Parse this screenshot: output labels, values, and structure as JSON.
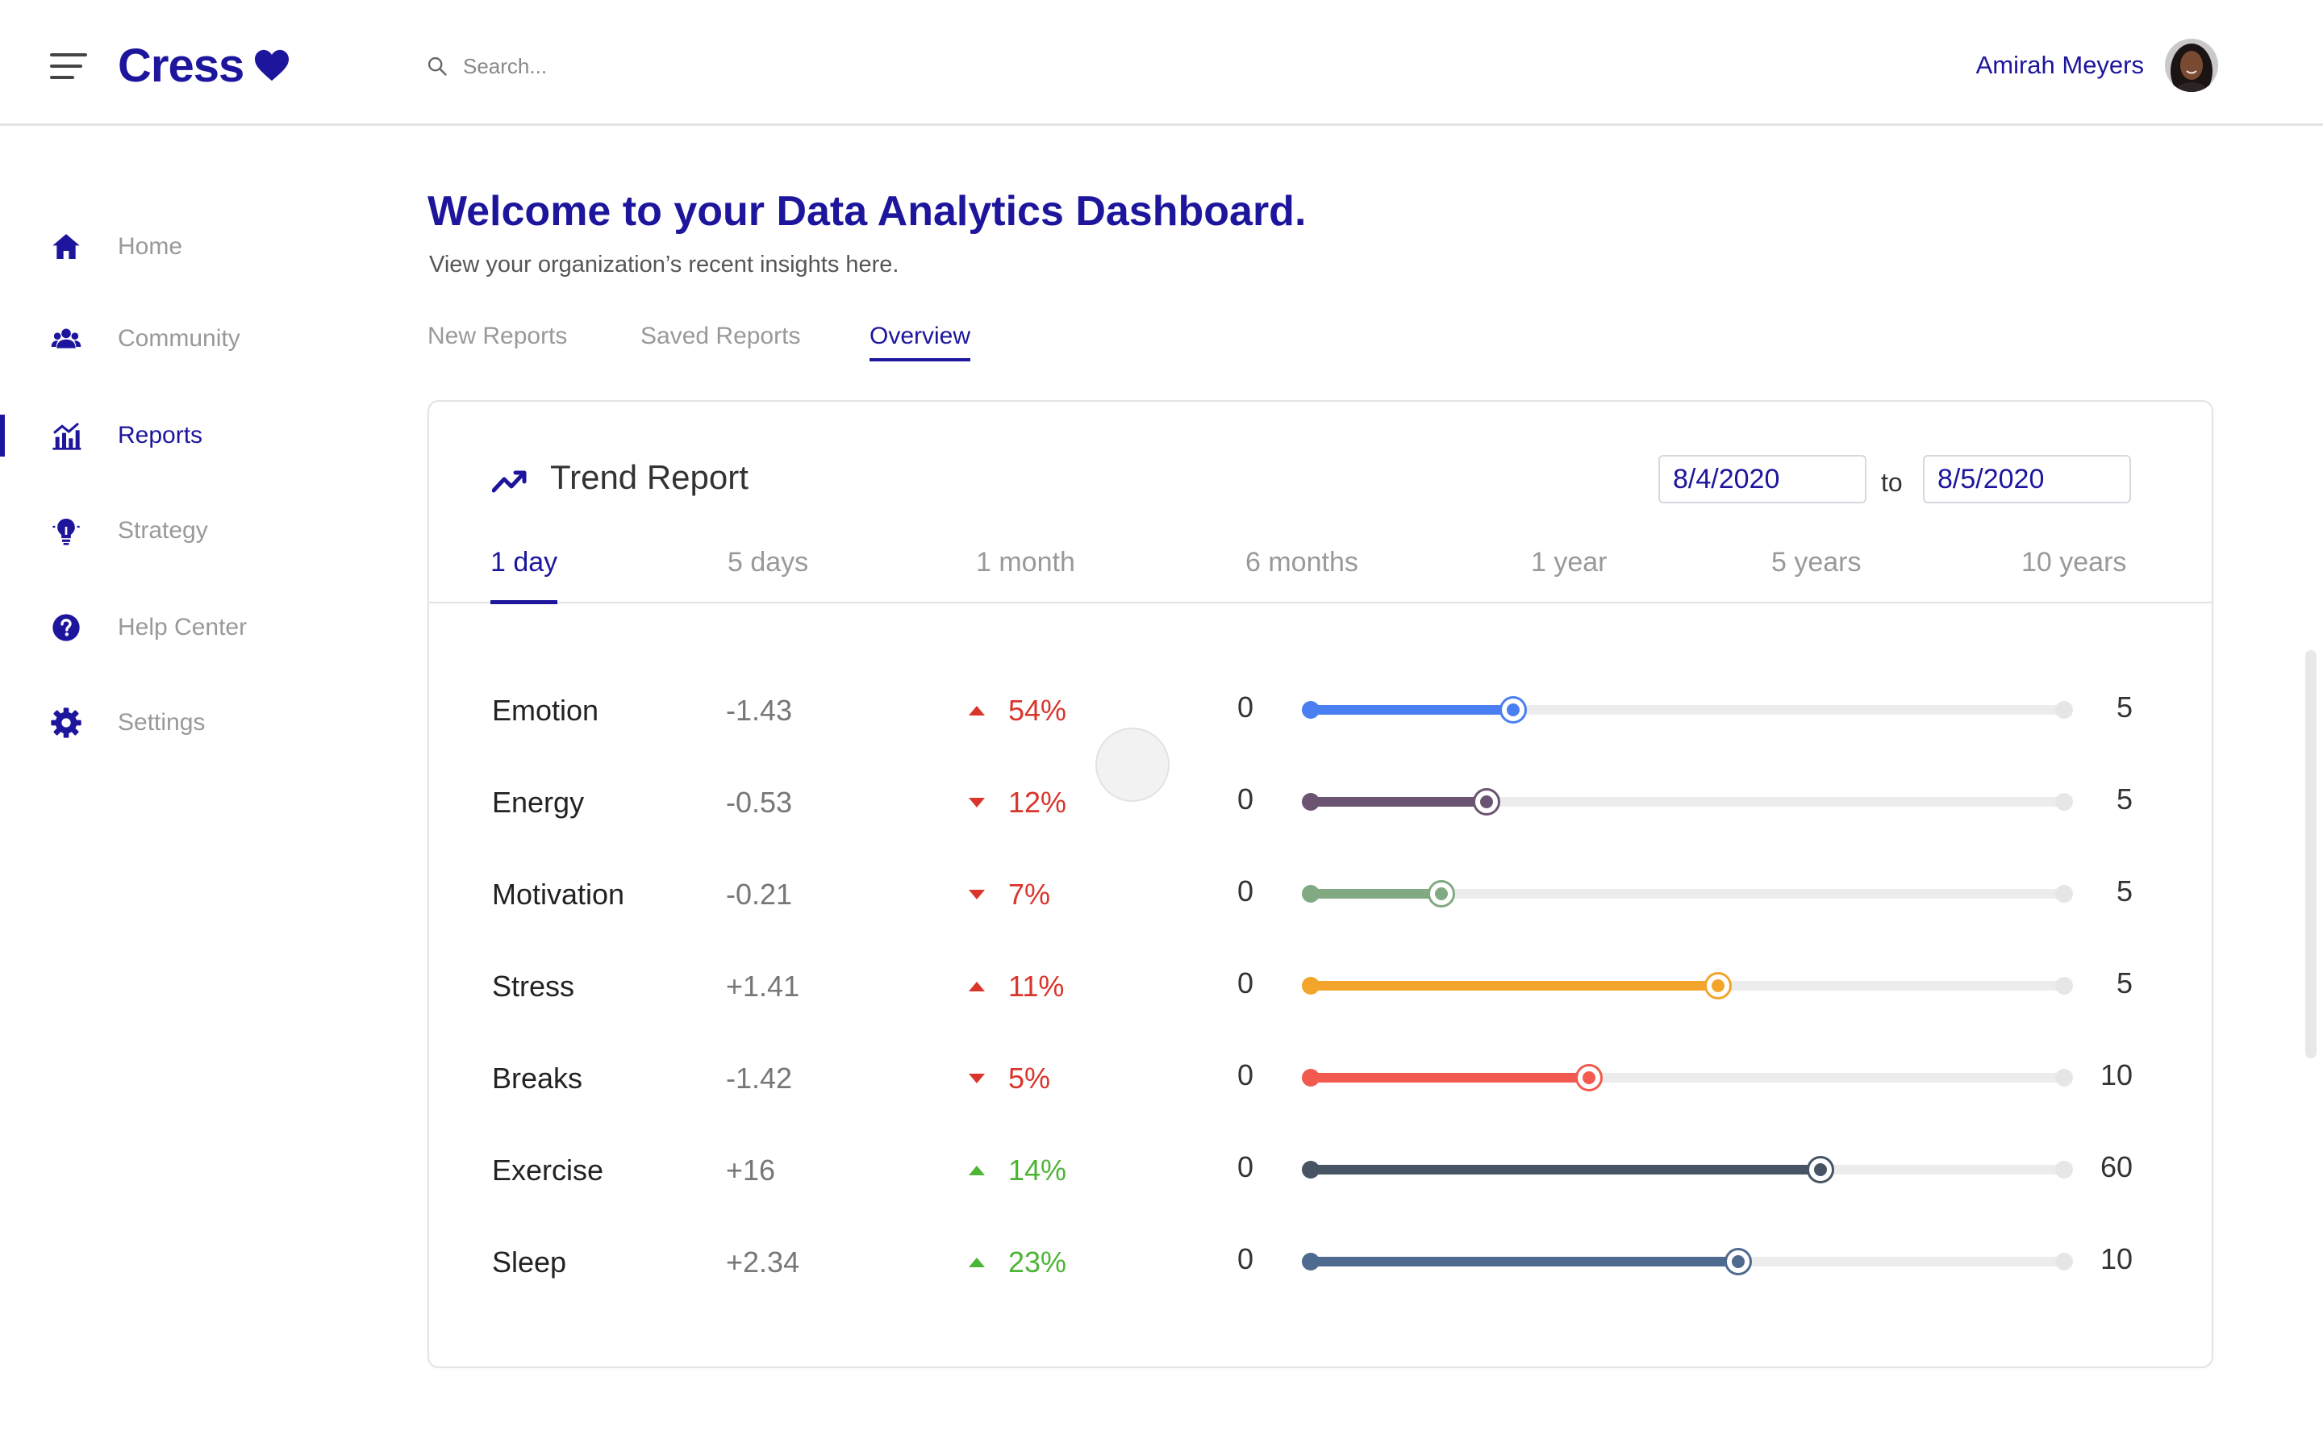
{
  "header": {
    "app_name": "Cress",
    "search_placeholder": "Search...",
    "user_name": "Amirah Meyers"
  },
  "sidebar": {
    "items": [
      {
        "label": "Home",
        "icon": "home-icon",
        "active": false
      },
      {
        "label": "Community",
        "icon": "community-icon",
        "active": false
      },
      {
        "label": "Reports",
        "icon": "reports-icon",
        "active": true
      },
      {
        "label": "Strategy",
        "icon": "lightbulb-icon",
        "active": false
      },
      {
        "label": "Help Center",
        "icon": "help-icon",
        "active": false
      },
      {
        "label": "Settings",
        "icon": "gear-icon",
        "active": false
      }
    ]
  },
  "main": {
    "title": "Welcome to your Data Analytics Dashboard.",
    "subtitle": "View your organization’s recent insights here.",
    "tabs": [
      {
        "label": "New Reports",
        "active": false
      },
      {
        "label": "Saved Reports",
        "active": false
      },
      {
        "label": "Overview",
        "active": true
      }
    ]
  },
  "report": {
    "title": "Trend Report",
    "date_from": "8/4/2020",
    "date_separator": "to",
    "date_to": "8/5/2020",
    "ranges": [
      {
        "label": "1 day",
        "active": true
      },
      {
        "label": "5 days",
        "active": false
      },
      {
        "label": "1 month",
        "active": false
      },
      {
        "label": "6 months",
        "active": false
      },
      {
        "label": "1 year",
        "active": false
      },
      {
        "label": "5 years",
        "active": false
      },
      {
        "label": "10 years",
        "active": false
      }
    ],
    "metrics": [
      {
        "name": "Emotion",
        "value": "-1.43",
        "direction": "up",
        "change": "54%",
        "change_color": "#d9352b",
        "min": "0",
        "max": "5",
        "level": 0.27,
        "color": "#4a7ff2"
      },
      {
        "name": "Energy",
        "value": "-0.53",
        "direction": "down",
        "change": "12%",
        "change_color": "#d9352b",
        "min": "0",
        "max": "5",
        "level": 0.235,
        "color": "#6b5472"
      },
      {
        "name": "Motivation",
        "value": "-0.21",
        "direction": "down",
        "change": "7%",
        "change_color": "#d9352b",
        "min": "0",
        "max": "5",
        "level": 0.175,
        "color": "#82aa82"
      },
      {
        "name": "Stress",
        "value": "+1.41",
        "direction": "up",
        "change": "11%",
        "change_color": "#d9352b",
        "min": "0",
        "max": "5",
        "level": 0.54,
        "color": "#f2a52a"
      },
      {
        "name": "Breaks",
        "value": "-1.42",
        "direction": "down",
        "change": "5%",
        "change_color": "#d9352b",
        "min": "0",
        "max": "10",
        "level": 0.37,
        "color": "#f25a4f"
      },
      {
        "name": "Exercise",
        "value": "+16",
        "direction": "up",
        "change": "14%",
        "change_color": "#4cb535",
        "min": "0",
        "max": "60",
        "level": 0.675,
        "color": "#465464"
      },
      {
        "name": "Sleep",
        "value": "+2.34",
        "direction": "up",
        "change": "23%",
        "change_color": "#4cb535",
        "min": "0",
        "max": "10",
        "level": 0.567,
        "color": "#4f6a8f"
      }
    ]
  },
  "colors": {
    "brand": "#1d169c",
    "negative": "#d9352b",
    "positive": "#4cb535"
  }
}
